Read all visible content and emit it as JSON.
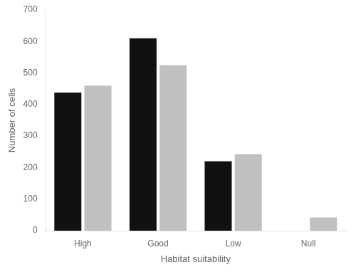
{
  "chart_data": {
    "type": "bar",
    "xlabel": "Habitat suitability",
    "ylabel": "Number of cells",
    "categories": [
      "High",
      "Good",
      "Low",
      "Null"
    ],
    "series": [
      {
        "color": "#111111",
        "values": [
          438,
          610,
          220,
          0
        ]
      },
      {
        "color": "#c0c0c0",
        "values": [
          460,
          525,
          243,
          42
        ]
      }
    ],
    "ylim": [
      0,
      700
    ],
    "yticks": [
      0,
      100,
      200,
      300,
      400,
      500,
      600,
      700
    ],
    "grid": false
  }
}
